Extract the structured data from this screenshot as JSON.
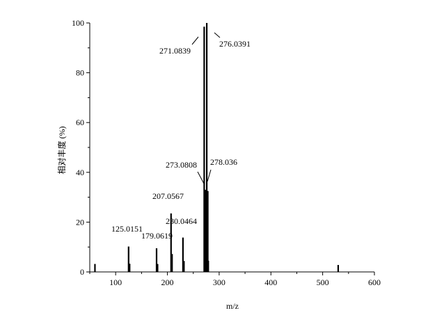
{
  "chart_data": {
    "type": "bar",
    "title": "",
    "xlabel": "m/z",
    "ylabel": "相对丰度 (%)",
    "xlim": [
      50,
      600
    ],
    "ylim": [
      0,
      100
    ],
    "x_ticks": [
      100,
      200,
      300,
      400,
      500,
      600
    ],
    "y_ticks": [
      0,
      20,
      40,
      60,
      80,
      100
    ],
    "grid": false,
    "legend": "none",
    "peaks": [
      {
        "mz": 60,
        "intensity": 3.2
      },
      {
        "mz": 125.0151,
        "intensity": 10.2
      },
      {
        "mz": 127,
        "intensity": 3.3
      },
      {
        "mz": 179.0619,
        "intensity": 9.5
      },
      {
        "mz": 181,
        "intensity": 3.2
      },
      {
        "mz": 207.0567,
        "intensity": 23.5
      },
      {
        "mz": 209,
        "intensity": 7.2
      },
      {
        "mz": 230.0464,
        "intensity": 13.8
      },
      {
        "mz": 232,
        "intensity": 4.4
      },
      {
        "mz": 271.0839,
        "intensity": 98.5
      },
      {
        "mz": 273.0808,
        "intensity": 33.0
      },
      {
        "mz": 276.0391,
        "intensity": 100
      },
      {
        "mz": 278.036,
        "intensity": 32.5
      },
      {
        "mz": 279,
        "intensity": 4.5
      },
      {
        "mz": 530,
        "intensity": 2.8
      }
    ],
    "annotations": [
      {
        "text": "271.0839",
        "mz": 271.0839
      },
      {
        "text": "276.0391",
        "mz": 276.0391
      },
      {
        "text": "273.0808",
        "mz": 273.0808
      },
      {
        "text": "278.036",
        "mz": 278.036
      },
      {
        "text": "207.0567",
        "mz": 207.0567
      },
      {
        "text": "230.0464",
        "mz": 230.0464
      },
      {
        "text": "125.0151",
        "mz": 125.0151
      },
      {
        "text": "179.0619",
        "mz": 179.0619
      }
    ]
  }
}
